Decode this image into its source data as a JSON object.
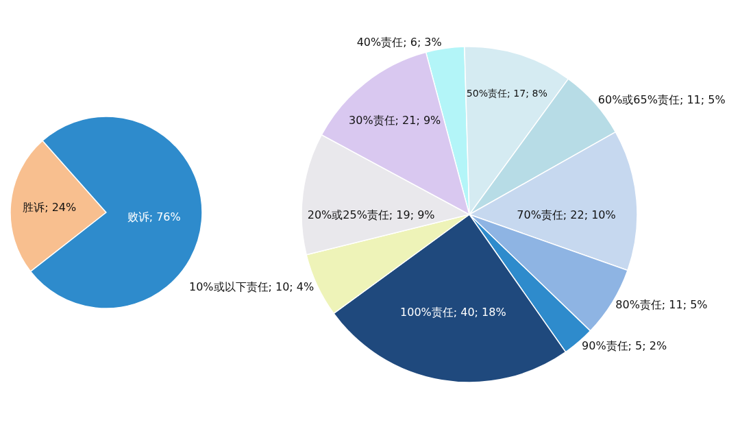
{
  "chart_data": [
    {
      "type": "pie",
      "categories": [
        "胜诉",
        "败诉"
      ],
      "values": [
        24,
        76
      ],
      "value_labels": [
        "24%",
        "76%"
      ],
      "colors": [
        "#f8bf8f",
        "#2e8bcc"
      ]
    },
    {
      "type": "pie",
      "categories": [
        "40%责任",
        "50%责任",
        "60%或65%责任",
        "70%责任",
        "80%责任",
        "90%责任",
        "100%责任",
        "10%或以下责任",
        "20%或25%责任",
        "30%责任"
      ],
      "values": [
        6,
        17,
        11,
        22,
        11,
        5,
        40,
        10,
        19,
        21
      ],
      "value_labels": [
        "6; 3%",
        "17; 8%",
        "11; 5%",
        "22; 10%",
        "11; 5%",
        "5; 2%",
        "40; 18%",
        "10; 4%",
        "19; 9%",
        "21; 9%"
      ],
      "colors": [
        "#b3f5f8",
        "#d5ebf2",
        "#b7dce6",
        "#c6d8ef",
        "#8eb4e3",
        "#2e8bcc",
        "#1f497d",
        "#eef3b8",
        "#e9e8ec",
        "#d9c8f0"
      ]
    }
  ]
}
